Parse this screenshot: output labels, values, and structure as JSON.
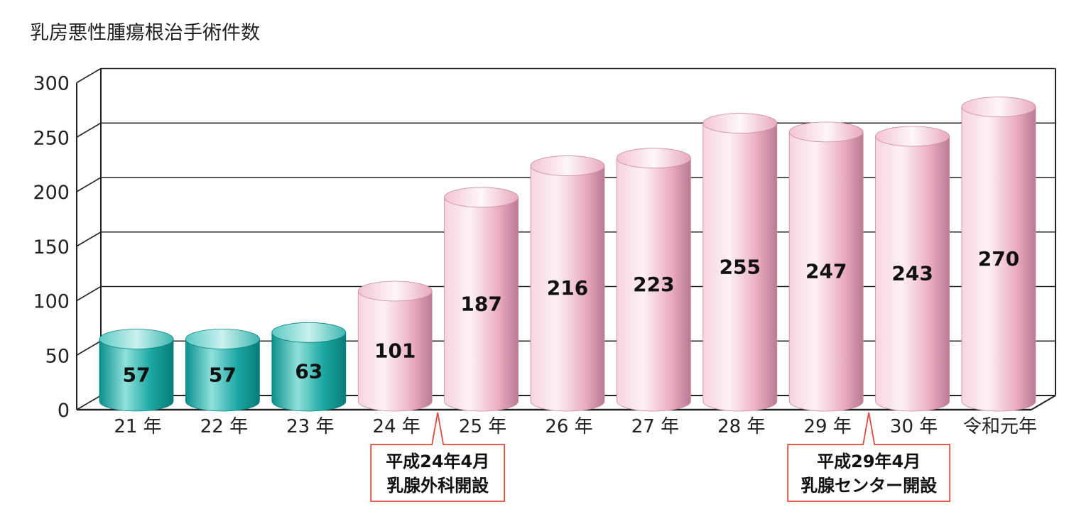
{
  "chart_data": {
    "type": "bar",
    "title": "乳房悪性腫瘍根治手術件数",
    "categories": [
      "21 年",
      "22 年",
      "23 年",
      "24 年",
      "25 年",
      "26 年",
      "27 年",
      "28 年",
      "29 年",
      "30 年",
      "令和元年"
    ],
    "values": [
      57,
      57,
      63,
      101,
      187,
      216,
      223,
      255,
      247,
      243,
      270
    ],
    "ylim": [
      0,
      300
    ],
    "yticks": [
      0,
      50,
      100,
      150,
      200,
      250,
      300
    ],
    "grid": true,
    "legend": "none",
    "colors": {
      "teal": "#17a9a4",
      "pink": "#f2b9cc"
    },
    "bar_color_index": [
      "teal",
      "teal",
      "teal",
      "pink",
      "pink",
      "pink",
      "pink",
      "pink",
      "pink",
      "pink",
      "pink"
    ],
    "annotations": [
      {
        "after_category": "24 年",
        "line1": "平成24年4月",
        "line2": "乳腺外科開設"
      },
      {
        "after_category": "29 年",
        "line1": "平成29年4月",
        "line2": "乳腺センター開設"
      }
    ]
  }
}
